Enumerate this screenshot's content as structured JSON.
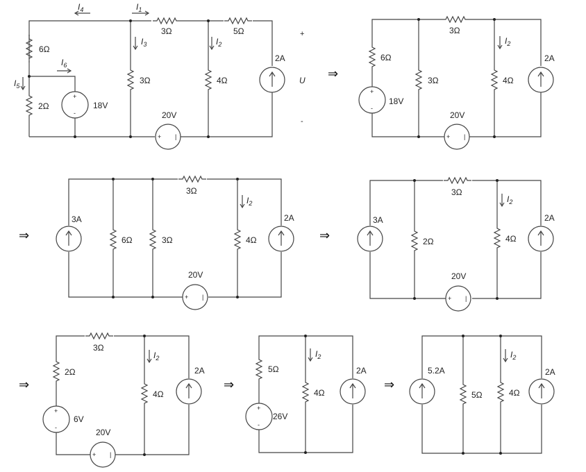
{
  "stage1": {
    "r6": "6Ω",
    "r2": "2Ω",
    "r3_top": "3Ω",
    "r5": "5Ω",
    "r3_mid": "3Ω",
    "r4": "4Ω",
    "v18": "18V",
    "v20": "20V",
    "i2a": "2A",
    "i1": "I",
    "i1_sub": "1",
    "i2": "I",
    "i2_sub": "2",
    "i3": "I",
    "i3_sub": "3",
    "i4": "I",
    "i4_sub": "4",
    "i5": "I",
    "i5_sub": "5",
    "i6": "I",
    "i6_sub": "6",
    "u_label": "U",
    "u_plus": "+",
    "u_minus": "-"
  },
  "stage2": {
    "r6": "6Ω",
    "v18": "18V",
    "r3_mid": "3Ω",
    "r3_top": "3Ω",
    "r4": "4Ω",
    "v20": "20V",
    "i2a": "2A",
    "i2": "I",
    "i2_sub": "2"
  },
  "stage3": {
    "i3a": "3A",
    "r6": "6Ω",
    "r3_mid": "3Ω",
    "r3_top": "3Ω",
    "r4": "4Ω",
    "v20": "20V",
    "i2a": "2A",
    "i2": "I",
    "i2_sub": "2"
  },
  "stage4": {
    "i3a": "3A",
    "r2": "2Ω",
    "r3_top": "3Ω",
    "r4": "4Ω",
    "v20": "20V",
    "i2a": "2A",
    "i2": "I",
    "i2_sub": "2"
  },
  "stage5": {
    "r2": "2Ω",
    "r3_top": "3Ω",
    "v6": "6V",
    "v20": "20V",
    "r4": "4Ω",
    "i2a": "2A",
    "i2": "I",
    "i2_sub": "2"
  },
  "stage6": {
    "r5": "5Ω",
    "v26": "26V",
    "r4": "4Ω",
    "i2a": "2A",
    "i2": "I",
    "i2_sub": "2"
  },
  "stage7": {
    "i52": "5.2A",
    "r5": "5Ω",
    "r4": "4Ω",
    "i2a": "2A",
    "i2": "I",
    "i2_sub": "2"
  },
  "arrows": {
    "symbol": "⇒"
  }
}
